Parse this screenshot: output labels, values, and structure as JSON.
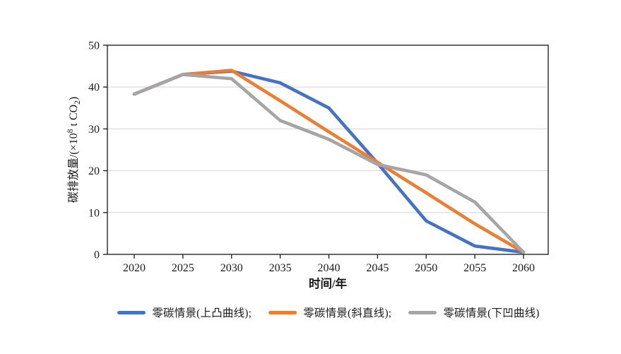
{
  "chart_data": {
    "type": "line",
    "title": "",
    "xlabel": "时间/年",
    "ylabel": "碳排放量/(×10⁸ t CO₂)",
    "ylabel_parts": {
      "pre": "碳排放量/(×10",
      "sup": "8",
      "mid": " t CO",
      "sub": "2",
      "close": ")"
    },
    "x": [
      2020,
      2025,
      2030,
      2035,
      2040,
      2045,
      2050,
      2055,
      2060
    ],
    "ylim": [
      0,
      50
    ],
    "yticks": [
      0,
      10,
      20,
      30,
      40,
      50
    ],
    "grid": "horizontal",
    "legend_position": "bottom-center",
    "series": [
      {
        "name": "零碳情景(上凸曲线);",
        "color": "#4472C4",
        "values": [
          38.3,
          43,
          43.8,
          41,
          35,
          21.8,
          8,
          2,
          0.5
        ]
      },
      {
        "name": "零碳情景(斜直线);",
        "color": "#ED7D31",
        "values": [
          38.3,
          43,
          44,
          36.7,
          29.3,
          22,
          14.7,
          7.3,
          0.5
        ]
      },
      {
        "name": "零碳情景(下凹曲线)",
        "color": "#A5A5A5",
        "values": [
          38.3,
          43,
          42,
          32,
          27.5,
          21.5,
          19,
          12.5,
          0.5
        ]
      }
    ],
    "colors": {
      "axis": "#262626",
      "grid": "#d9d9d9",
      "text": "#1a1a1a",
      "background": "#ffffff"
    }
  }
}
